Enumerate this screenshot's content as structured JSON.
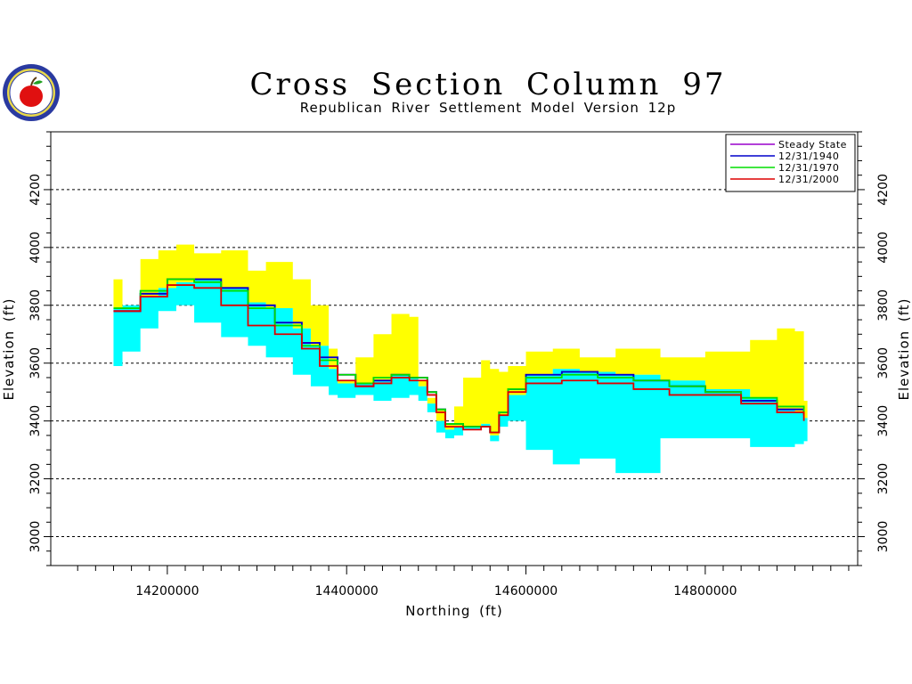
{
  "logo": {
    "icon": "apple-seal-logo-icon"
  },
  "chart_data": {
    "type": "area",
    "title": "Cross Section Column 97",
    "subtitle": "Republican River Settlement Model Version 12p",
    "xlabel": "Northing (ft)",
    "ylabel": "Elevation (ft)",
    "xlim": [
      14070000,
      14970000
    ],
    "ylim": [
      2900,
      4400
    ],
    "xticks": [
      14200000,
      14400000,
      14600000,
      14800000
    ],
    "xtick_labels": [
      "14200000",
      "14400000",
      "14600000",
      "14800000"
    ],
    "yticks": [
      3000,
      3200,
      3400,
      3600,
      3800,
      4000,
      4200
    ],
    "ytick_labels": [
      "3000",
      "3200",
      "3400",
      "3600",
      "3800",
      "4000",
      "4200"
    ],
    "grid": "horizontal dashed",
    "legend_position": "top-right",
    "colors": {
      "layer1": "#ffff00",
      "layer2": "#00ffff",
      "steady_state": "#9900cc",
      "y1940": "#0000cc",
      "y1970": "#00dd00",
      "y2000": "#dd0000"
    },
    "layers": [
      {
        "name": "layer1",
        "x": [
          14140000,
          14150000,
          14170000,
          14190000,
          14210000,
          14230000,
          14260000,
          14290000,
          14310000,
          14340000,
          14360000,
          14380000,
          14390000,
          14410000,
          14430000,
          14450000,
          14470000,
          14480000,
          14490000,
          14500000,
          14510000,
          14520000,
          14530000,
          14540000,
          14550000,
          14560000,
          14570000,
          14580000,
          14600000,
          14630000,
          14660000,
          14700000,
          14750000,
          14800000,
          14850000,
          14880000,
          14900000,
          14910000
        ],
        "top": [
          3890,
          3800,
          3960,
          3990,
          4010,
          3980,
          3990,
          3920,
          3950,
          3890,
          3800,
          3650,
          3540,
          3620,
          3700,
          3770,
          3760,
          3540,
          3480,
          3440,
          3390,
          3450,
          3550,
          3550,
          3610,
          3580,
          3570,
          3590,
          3640,
          3650,
          3620,
          3650,
          3620,
          3640,
          3680,
          3720,
          3710,
          3470
        ],
        "bottom": [
          3790,
          3800,
          3830,
          3860,
          3880,
          3890,
          3860,
          3810,
          3790,
          3720,
          3660,
          3580,
          3530,
          3530,
          3540,
          3560,
          3550,
          3520,
          3460,
          3400,
          3370,
          3380,
          3380,
          3380,
          3390,
          3350,
          3420,
          3490,
          3560,
          3580,
          3570,
          3560,
          3540,
          3510,
          3480,
          3440,
          3430,
          3410
        ]
      },
      {
        "name": "layer2",
        "x": [
          14140000,
          14150000,
          14170000,
          14190000,
          14210000,
          14230000,
          14260000,
          14290000,
          14310000,
          14340000,
          14360000,
          14380000,
          14390000,
          14410000,
          14430000,
          14450000,
          14470000,
          14480000,
          14490000,
          14500000,
          14510000,
          14520000,
          14530000,
          14540000,
          14550000,
          14560000,
          14570000,
          14580000,
          14600000,
          14630000,
          14660000,
          14700000,
          14750000,
          14800000,
          14850000,
          14880000,
          14900000,
          14910000
        ],
        "top": [
          3790,
          3800,
          3830,
          3860,
          3880,
          3890,
          3860,
          3810,
          3790,
          3720,
          3660,
          3580,
          3530,
          3530,
          3540,
          3560,
          3550,
          3520,
          3460,
          3400,
          3370,
          3380,
          3380,
          3380,
          3390,
          3350,
          3420,
          3490,
          3560,
          3580,
          3570,
          3560,
          3540,
          3510,
          3480,
          3440,
          3430,
          3410
        ],
        "bottom": [
          3590,
          3640,
          3720,
          3780,
          3800,
          3740,
          3690,
          3660,
          3620,
          3560,
          3520,
          3490,
          3480,
          3490,
          3470,
          3480,
          3490,
          3470,
          3430,
          3360,
          3340,
          3350,
          3370,
          3370,
          3380,
          3330,
          3380,
          3400,
          3300,
          3250,
          3270,
          3220,
          3340,
          3340,
          3310,
          3310,
          3320,
          3330
        ]
      }
    ],
    "series": [
      {
        "name": "Steady State",
        "x": [
          14140000,
          14170000,
          14200000,
          14230000,
          14260000,
          14290000,
          14320000,
          14350000,
          14370000,
          14390000,
          14410000,
          14430000,
          14450000,
          14470000,
          14490000,
          14500000,
          14510000,
          14530000,
          14550000,
          14560000,
          14570000,
          14580000,
          14600000,
          14640000,
          14680000,
          14720000,
          14760000,
          14800000,
          14840000,
          14880000,
          14910000
        ],
        "values": [
          3780,
          3840,
          3890,
          3890,
          3860,
          3800,
          3740,
          3670,
          3620,
          3560,
          3520,
          3540,
          3560,
          3550,
          3500,
          3440,
          3390,
          3380,
          3380,
          3360,
          3430,
          3510,
          3560,
          3570,
          3560,
          3540,
          3520,
          3500,
          3470,
          3440,
          3420
        ]
      },
      {
        "name": "12/31/1940",
        "x": [
          14140000,
          14170000,
          14200000,
          14230000,
          14260000,
          14290000,
          14320000,
          14350000,
          14370000,
          14390000,
          14410000,
          14430000,
          14450000,
          14470000,
          14490000,
          14500000,
          14510000,
          14530000,
          14550000,
          14560000,
          14570000,
          14580000,
          14600000,
          14640000,
          14680000,
          14720000,
          14760000,
          14800000,
          14840000,
          14880000,
          14910000
        ],
        "values": [
          3780,
          3840,
          3890,
          3890,
          3860,
          3800,
          3740,
          3670,
          3620,
          3560,
          3520,
          3540,
          3560,
          3550,
          3500,
          3440,
          3390,
          3380,
          3380,
          3360,
          3430,
          3510,
          3560,
          3570,
          3560,
          3540,
          3520,
          3500,
          3470,
          3440,
          3420
        ]
      },
      {
        "name": "12/31/1970",
        "x": [
          14140000,
          14170000,
          14200000,
          14230000,
          14260000,
          14290000,
          14320000,
          14350000,
          14370000,
          14390000,
          14410000,
          14430000,
          14450000,
          14470000,
          14490000,
          14500000,
          14510000,
          14530000,
          14550000,
          14560000,
          14570000,
          14580000,
          14600000,
          14640000,
          14680000,
          14720000,
          14760000,
          14800000,
          14840000,
          14880000,
          14910000
        ],
        "values": [
          3790,
          3850,
          3890,
          3880,
          3850,
          3790,
          3730,
          3660,
          3610,
          3560,
          3530,
          3550,
          3560,
          3550,
          3500,
          3440,
          3390,
          3380,
          3380,
          3360,
          3430,
          3510,
          3550,
          3560,
          3550,
          3540,
          3520,
          3500,
          3480,
          3450,
          3420
        ]
      },
      {
        "name": "12/31/2000",
        "x": [
          14140000,
          14170000,
          14200000,
          14230000,
          14260000,
          14290000,
          14320000,
          14350000,
          14370000,
          14390000,
          14410000,
          14430000,
          14450000,
          14470000,
          14490000,
          14500000,
          14510000,
          14530000,
          14550000,
          14560000,
          14570000,
          14580000,
          14600000,
          14640000,
          14680000,
          14720000,
          14760000,
          14800000,
          14840000,
          14880000,
          14910000
        ],
        "values": [
          3780,
          3830,
          3870,
          3860,
          3800,
          3730,
          3700,
          3650,
          3590,
          3540,
          3520,
          3530,
          3550,
          3540,
          3490,
          3430,
          3380,
          3370,
          3380,
          3360,
          3420,
          3500,
          3530,
          3540,
          3530,
          3510,
          3490,
          3490,
          3460,
          3430,
          3400
        ]
      }
    ]
  }
}
